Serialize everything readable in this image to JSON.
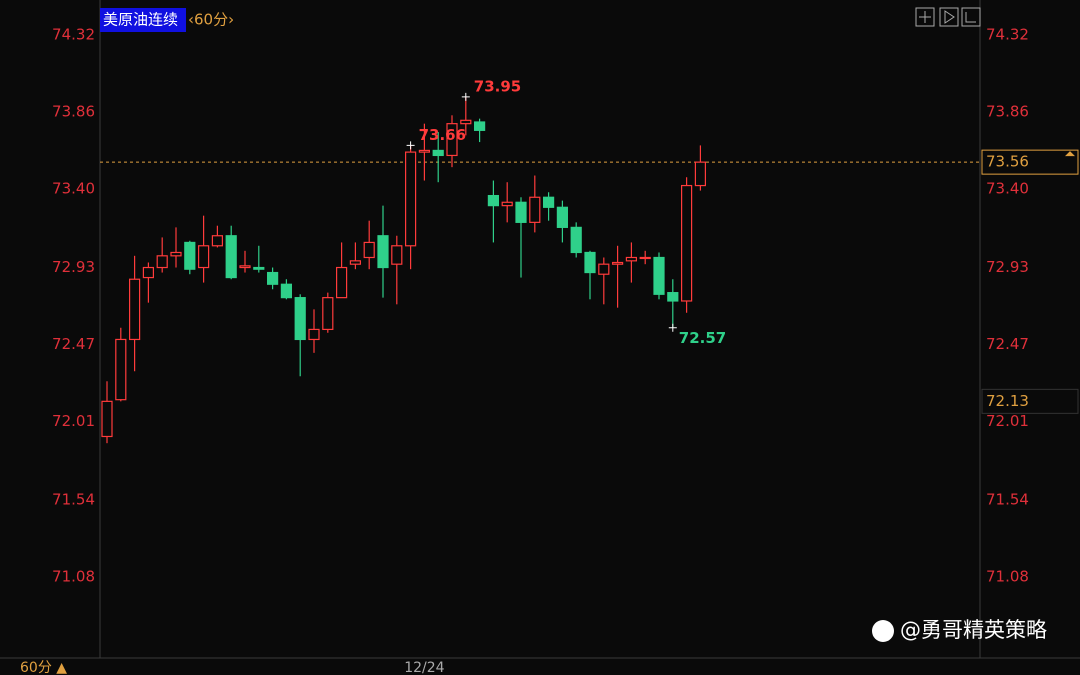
{
  "chart_data": {
    "type": "candlestick",
    "title": "美原油连续",
    "period": "‹60分›",
    "period_menu": "60分 ▲",
    "watermark": "@勇哥精英策略",
    "up_color": "#ff3b3b",
    "down_color": "#2fd08a",
    "categories": [
      null,
      null,
      null,
      null,
      null,
      null,
      null,
      null,
      null,
      null,
      null,
      null,
      null,
      null,
      null,
      null,
      null,
      null,
      null,
      null,
      null,
      null,
      null,
      "12/24",
      null,
      null,
      null,
      null,
      null,
      null,
      null,
      null,
      null,
      null,
      null,
      null,
      null,
      null,
      null,
      null,
      null,
      null,
      null,
      null
    ],
    "open": [
      71.92,
      72.14,
      72.5,
      72.87,
      72.93,
      73.0,
      73.08,
      72.93,
      73.06,
      73.12,
      72.93,
      72.93,
      72.9,
      72.83,
      72.75,
      72.5,
      72.56,
      72.75,
      72.95,
      72.99,
      73.12,
      72.95,
      73.06,
      73.62,
      73.63,
      73.6,
      73.79,
      73.8,
      73.36,
      73.3,
      73.32,
      73.2,
      73.35,
      73.29,
      73.17,
      73.02,
      72.89,
      72.95,
      72.97,
      72.99,
      72.99,
      72.78,
      72.73,
      73.42
    ],
    "high": [
      72.25,
      72.57,
      73.0,
      72.96,
      73.11,
      73.17,
      73.09,
      73.24,
      73.18,
      73.18,
      73.03,
      73.06,
      72.93,
      72.86,
      72.77,
      72.68,
      72.78,
      73.08,
      73.08,
      73.21,
      73.3,
      73.12,
      73.66,
      73.79,
      73.74,
      73.84,
      73.95,
      73.82,
      73.45,
      73.44,
      73.35,
      73.48,
      73.38,
      73.33,
      73.2,
      73.03,
      72.99,
      73.06,
      73.08,
      73.03,
      73.02,
      72.86,
      73.47,
      73.66
    ],
    "low": [
      71.88,
      72.13,
      72.31,
      72.72,
      72.9,
      72.93,
      72.89,
      72.84,
      73.05,
      72.86,
      72.9,
      72.9,
      72.8,
      72.74,
      72.28,
      72.42,
      72.54,
      72.75,
      72.92,
      72.92,
      72.75,
      72.71,
      72.92,
      73.45,
      73.44,
      73.53,
      73.72,
      73.68,
      73.08,
      73.2,
      72.87,
      73.14,
      73.21,
      73.08,
      72.99,
      72.74,
      72.71,
      72.69,
      72.84,
      72.95,
      72.74,
      72.57,
      72.66,
      73.39
    ],
    "close": [
      72.13,
      72.5,
      72.86,
      72.93,
      73.0,
      73.02,
      72.92,
      73.06,
      73.12,
      72.87,
      72.94,
      72.92,
      72.83,
      72.75,
      72.5,
      72.56,
      72.75,
      72.93,
      72.97,
      73.08,
      72.93,
      73.06,
      73.62,
      73.63,
      73.6,
      73.79,
      73.81,
      73.75,
      73.3,
      73.32,
      73.2,
      73.35,
      73.29,
      73.17,
      73.02,
      72.9,
      72.95,
      72.96,
      72.99,
      72.99,
      72.77,
      72.73,
      73.42,
      73.56
    ],
    "high_labels": [
      73.95,
      73.66
    ],
    "low_labels": [
      72.57
    ],
    "current_price": 73.56,
    "marker_price": 72.13,
    "ylim": [
      71.08,
      74.32
    ],
    "yticks": [
      74.32,
      73.86,
      {
        "value": 73.4,
        "label": "73.40"
      },
      72.93,
      72.47,
      72.01,
      71.54,
      71.08
    ]
  }
}
